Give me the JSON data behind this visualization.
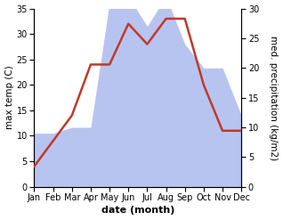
{
  "months": [
    "Jan",
    "Feb",
    "Mar",
    "Apr",
    "May",
    "Jun",
    "Jul",
    "Aug",
    "Sep",
    "Oct",
    "Nov",
    "Dec"
  ],
  "temperature": [
    4,
    9,
    14,
    24,
    24,
    32,
    28,
    33,
    33,
    20,
    11,
    11
  ],
  "precipitation": [
    9,
    9,
    10,
    10,
    31,
    32,
    27,
    32,
    24,
    20,
    20,
    12
  ],
  "temp_color": "#c0392b",
  "precip_color": "#b8c4f0",
  "bg_color": "#ffffff",
  "temp_ylim": [
    0,
    35
  ],
  "precip_ylim": [
    0,
    30
  ],
  "xlabel": "date (month)",
  "ylabel_left": "max temp (C)",
  "ylabel_right": "med. precipitation (kg/m2)",
  "label_fontsize": 7.5,
  "tick_fontsize": 7,
  "temp_linewidth": 1.8
}
